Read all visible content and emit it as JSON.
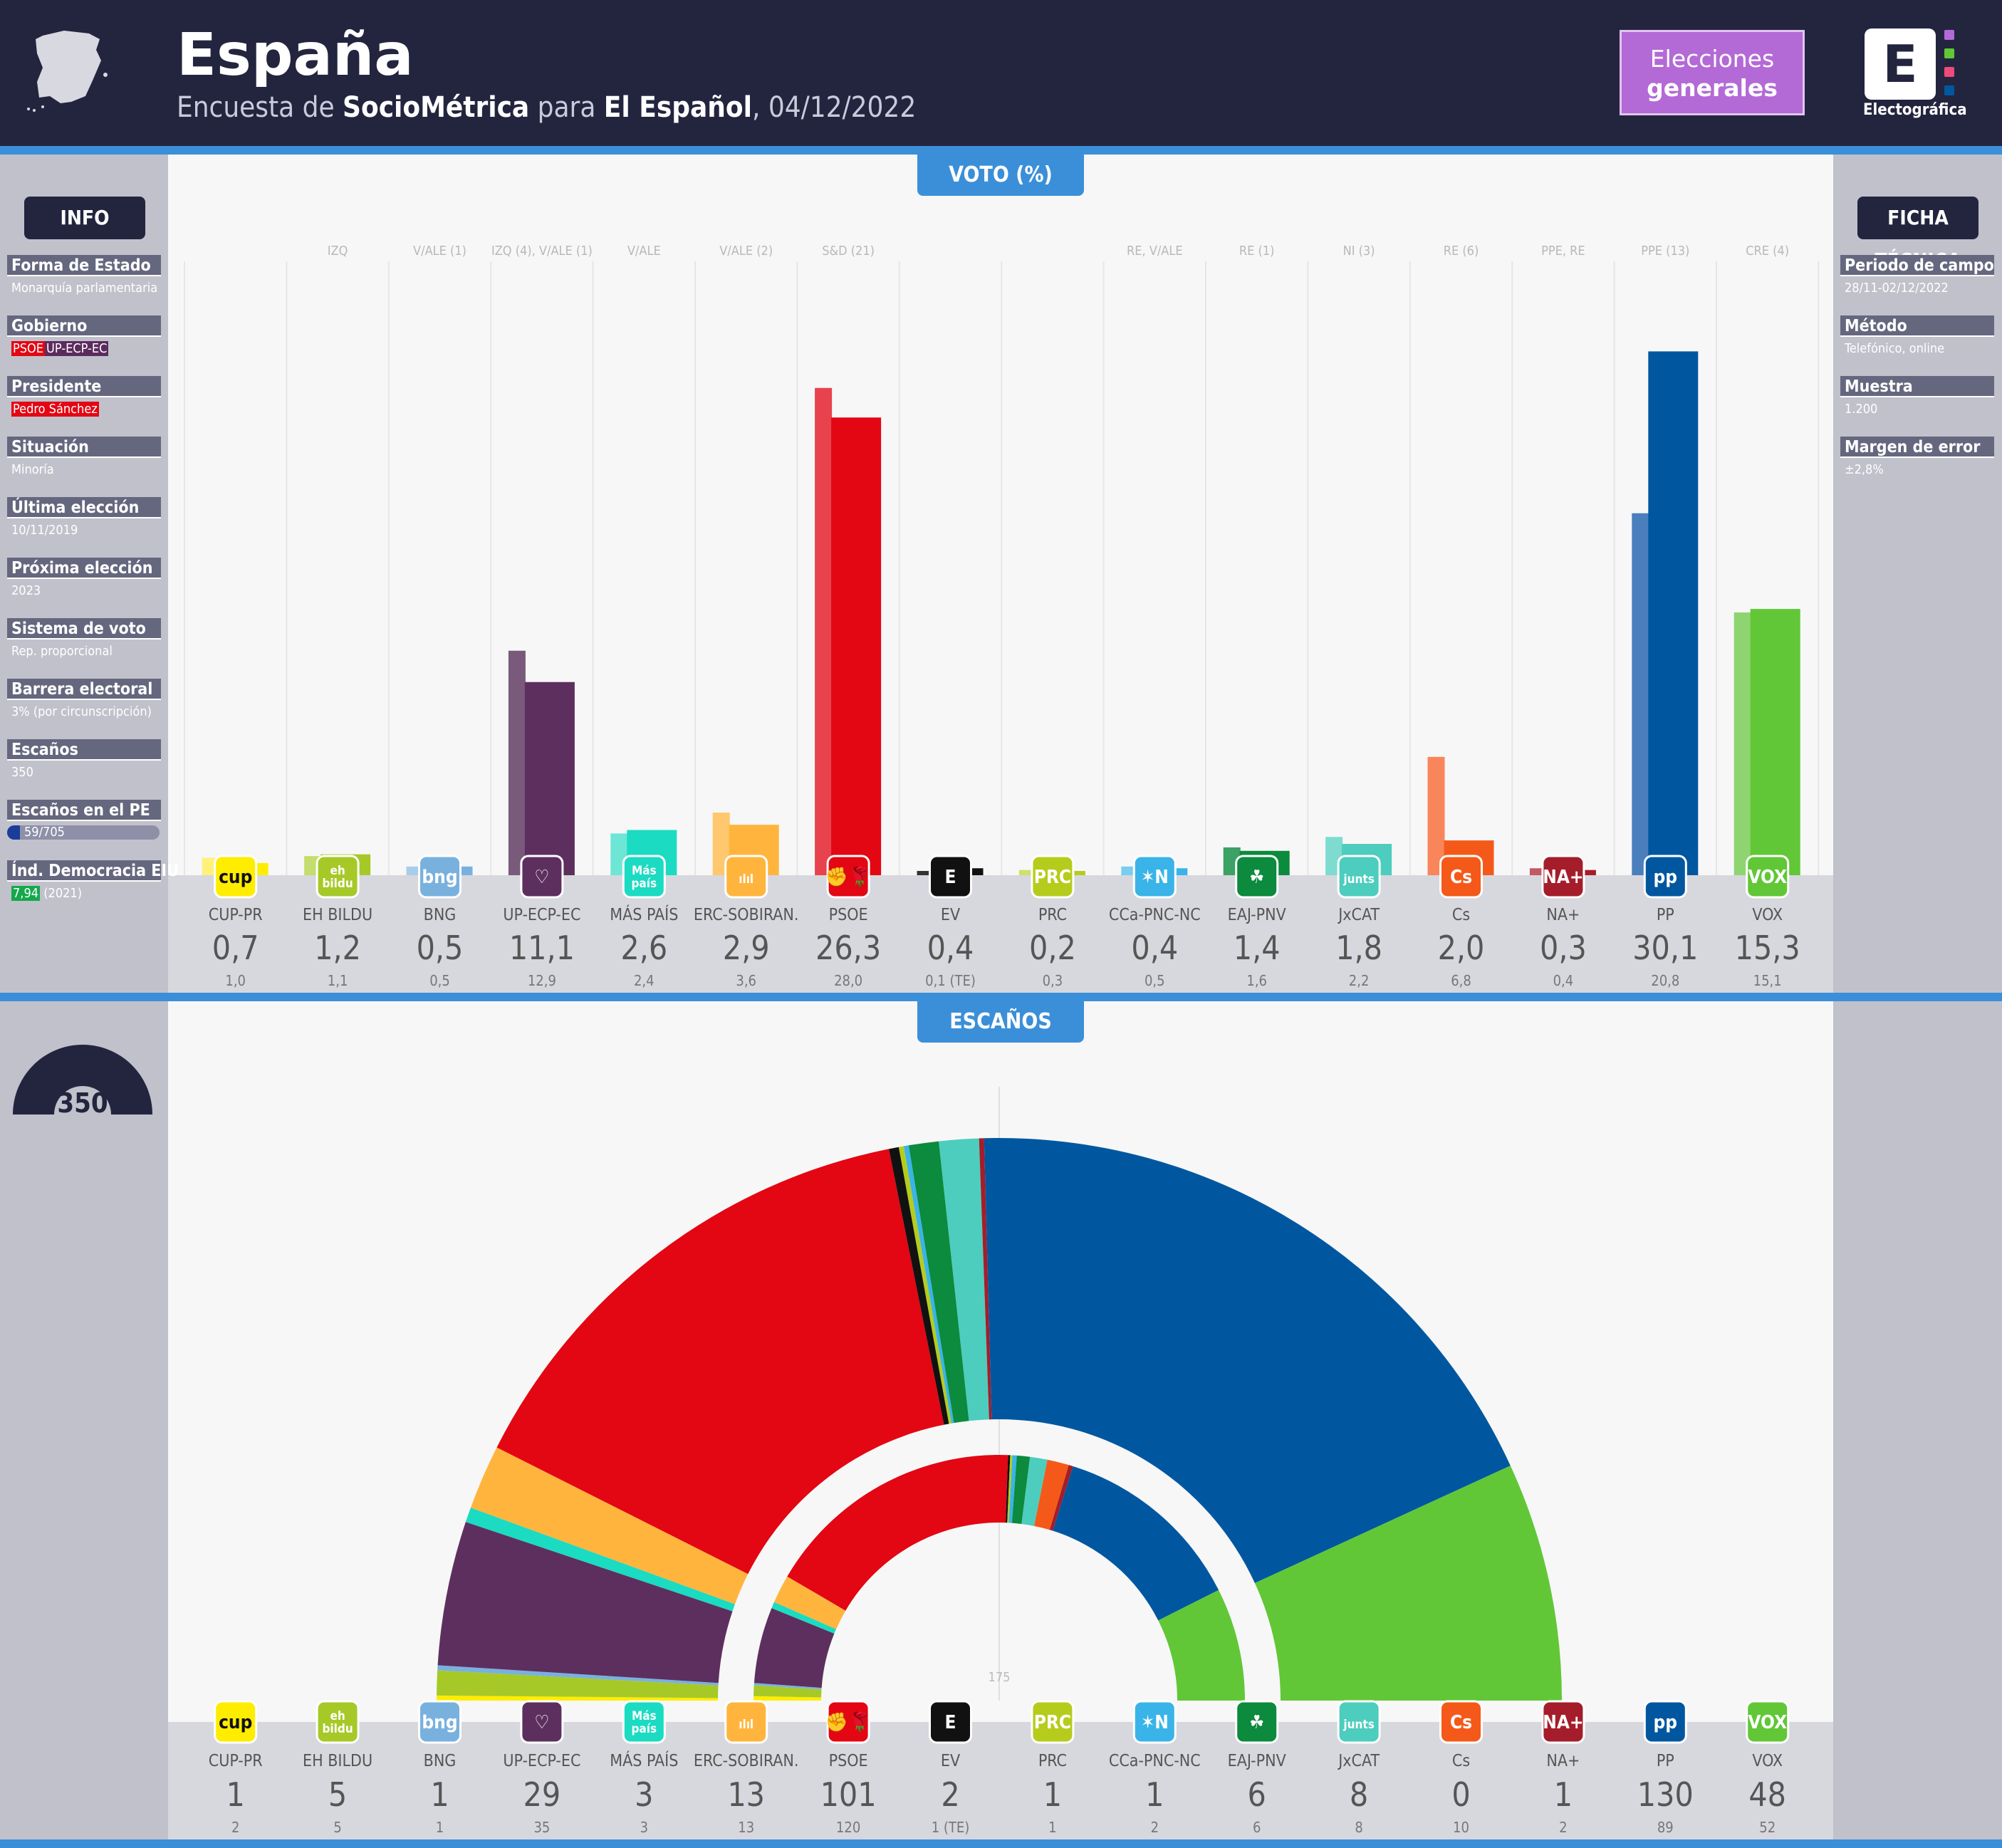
{
  "header": {
    "title": "España",
    "sub_prefix": "Encuesta de ",
    "pollster": "SocioMétrica",
    "sub_mid": " para ",
    "media": "El Español",
    "date": ", 04/12/2022",
    "badge_line1": "Elecciones",
    "badge_line2": "generales",
    "logo_letter": "E",
    "logo_text": "Electográfica"
  },
  "tabs": {
    "vote": "VOTO (%)",
    "seats": "ESCAÑOS"
  },
  "info": {
    "title": "INFO",
    "items": [
      {
        "label": "Forma de Estado",
        "value": "Monarquía parlamentaria"
      },
      {
        "label": "Gobierno",
        "value": ""
      },
      {
        "label": "Presidente",
        "value": ""
      },
      {
        "label": "Situación",
        "value": "Minoría"
      },
      {
        "label": "Última elección",
        "value": "10/11/2019"
      },
      {
        "label": "Próxima elección",
        "value": "2023"
      },
      {
        "label": "Sistema de voto",
        "value": "Rep. proporcional"
      },
      {
        "label": "Barrera electoral",
        "value": "3% (por circunscripción)"
      },
      {
        "label": "Escaños",
        "value": "350"
      },
      {
        "label": "Escaños en el PE",
        "value": "59/705"
      },
      {
        "label": "Índ. Democracia EIU",
        "value": "(2021)"
      }
    ],
    "gov_tag1": "PSOE",
    "gov_tag2": "UP-ECP-EC",
    "president": "Pedro Sánchez",
    "eiu_score": "7,94",
    "ep_fraction": 0.0837
  },
  "ficha": {
    "title": "FICHA TÉCNICA",
    "items": [
      {
        "label": "Periodo de campo",
        "value": "28/11-02/12/2022"
      },
      {
        "label": "Método",
        "value": "Telefónico, online"
      },
      {
        "label": "Muestra",
        "value": "1.200"
      },
      {
        "label": "Margen de error",
        "value": "±2,8%"
      }
    ]
  },
  "total_seats": "350",
  "majority_label": "175",
  "chart_data": [
    {
      "type": "bar",
      "title": "VOTO (%)",
      "ylim": [
        0,
        32
      ],
      "categories": [
        "CUP-PR",
        "EH BILDU",
        "BNG",
        "UP-ECP-EC",
        "MÁS PAÍS",
        "ERC-SOBIRAN.",
        "PSOE",
        "EV",
        "PRC",
        "CCa-PNC-NC",
        "EAJ-PNV",
        "JxCAT",
        "Cs",
        "NA+",
        "PP",
        "VOX"
      ],
      "affiliations": [
        "",
        "IZQ",
        "V/ALE (1)",
        "IZQ (4), V/ALE (1)",
        "V/ALE",
        "V/ALE (2)",
        "S&D (21)",
        "",
        "",
        "RE, V/ALE",
        "RE (1)",
        "NI (3)",
        "RE (6)",
        "PPE, RE",
        "PPE (13)",
        "CRE (4)"
      ],
      "series": [
        {
          "name": "Encuesta",
          "values": [
            0.7,
            1.2,
            0.5,
            11.1,
            2.6,
            2.9,
            26.3,
            0.4,
            0.2,
            0.4,
            1.4,
            1.8,
            2.0,
            0.3,
            30.1,
            15.3
          ],
          "labels": [
            "0,7",
            "1,2",
            "0,5",
            "11,1",
            "2,6",
            "2,9",
            "26,3",
            "0,4",
            "0,2",
            "0,4",
            "1,4",
            "1,8",
            "2,0",
            "0,3",
            "30,1",
            "15,3"
          ]
        },
        {
          "name": "Elección anterior",
          "values": [
            1.0,
            1.1,
            0.5,
            12.9,
            2.4,
            3.6,
            28.0,
            0.1,
            0.3,
            0.5,
            1.6,
            2.2,
            6.8,
            0.4,
            20.8,
            15.1
          ],
          "labels": [
            "1,0",
            "1,1",
            "0,5",
            "12,9",
            "2,4",
            "3,6",
            "28,0",
            "0,1 (TE)",
            "0,3",
            "0,5",
            "1,6",
            "2,2",
            "6,8",
            "0,4",
            "20,8",
            "15,1"
          ]
        }
      ],
      "colors": [
        "#ffed00",
        "#a6c928",
        "#79b1de",
        "#5d2f5e",
        "#1bdbc2",
        "#ffb53d",
        "#e30613",
        "#111111",
        "#b6cc1d",
        "#3ab4e8",
        "#0c8a3d",
        "#4ccdbd",
        "#f55919",
        "#a51d2a",
        "#0057a0",
        "#61c737"
      ],
      "prev_colors": [
        "#fff17a",
        "#c4dd6e",
        "#a8cdeb",
        "#7a5a7b",
        "#6de6d6",
        "#ffc76e",
        "#e8424e",
        "#333333",
        "#d0e06a",
        "#78cdf0",
        "#3ba165",
        "#7edbd0",
        "#f8865a",
        "#c25a64",
        "#4a7ebd",
        "#8ed572"
      ]
    },
    {
      "type": "pie",
      "title": "ESCAÑOS",
      "total": 350,
      "majority": 175,
      "categories": [
        "CUP-PR",
        "EH BILDU",
        "BNG",
        "UP-ECP-EC",
        "MÁS PAÍS",
        "ERC-SOBIRAN.",
        "PSOE",
        "EV",
        "PRC",
        "CCa-PNC-NC",
        "EAJ-PNV",
        "JxCAT",
        "Cs",
        "NA+",
        "PP",
        "VOX"
      ],
      "series": [
        {
          "name": "Encuesta",
          "values": [
            1,
            5,
            1,
            29,
            3,
            13,
            101,
            2,
            1,
            1,
            6,
            8,
            0,
            1,
            130,
            48
          ],
          "labels": [
            "1",
            "5",
            "1",
            "29",
            "3",
            "13",
            "101",
            "2",
            "1",
            "1",
            "6",
            "8",
            "0",
            "1",
            "130",
            "48"
          ]
        },
        {
          "name": "Elección anterior",
          "values": [
            2,
            5,
            1,
            35,
            3,
            13,
            120,
            1,
            1,
            2,
            6,
            8,
            10,
            2,
            89,
            52
          ],
          "labels": [
            "2",
            "5",
            "1",
            "35",
            "3",
            "13",
            "120",
            "1 (TE)",
            "1",
            "2",
            "6",
            "8",
            "10",
            "2",
            "89",
            "52"
          ]
        }
      ],
      "colors": [
        "#ffed00",
        "#a6c928",
        "#79b1de",
        "#5d2f5e",
        "#1bdbc2",
        "#ffb53d",
        "#e30613",
        "#111111",
        "#b6cc1d",
        "#3ab4e8",
        "#0c8a3d",
        "#4ccdbd",
        "#f55919",
        "#a51d2a",
        "#0057a0",
        "#61c737"
      ]
    }
  ],
  "party_logos": [
    "cup",
    "eh\nbildu",
    "bng",
    "♡",
    "Más\npaís",
    "ılıl",
    "✊🌹",
    "E",
    "PRC",
    "✶N",
    "☘",
    "junts",
    "Cs",
    "NA+",
    "pp",
    "VOX"
  ]
}
